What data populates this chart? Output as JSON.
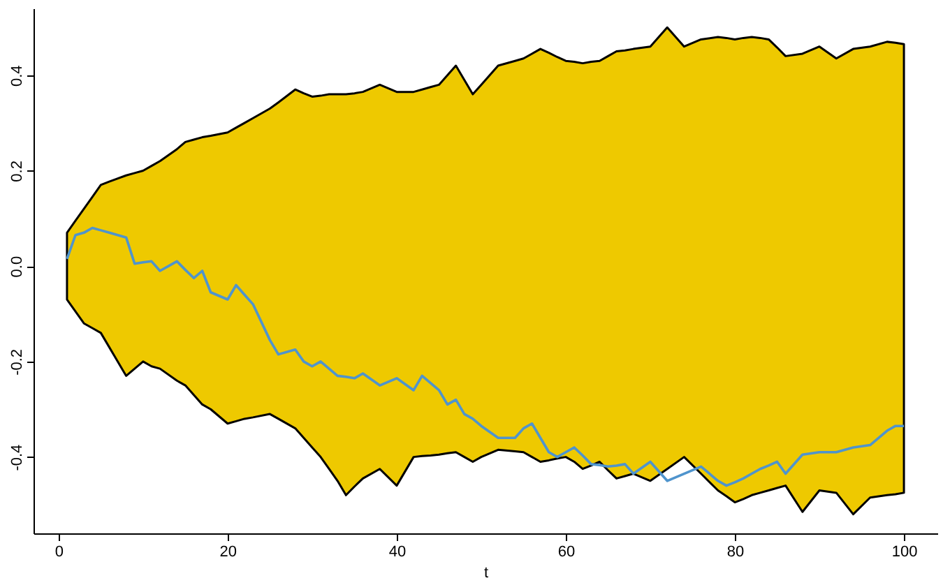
{
  "chart_data": {
    "type": "line",
    "xlabel": "t",
    "xlim": [
      -2.96,
      103.96
    ],
    "ylim": [
      -0.56,
      0.54
    ],
    "xticks": [
      0,
      20,
      40,
      60,
      80,
      100
    ],
    "yticks": [
      {
        "value": -0.4,
        "label": "-0.4"
      },
      {
        "value": -0.2,
        "label": "-0.2"
      },
      {
        "value": 0,
        "label": "0.0"
      },
      {
        "value": 0.2,
        "label": "0.2"
      },
      {
        "value": 0.4,
        "label": "0.4"
      }
    ],
    "grid": false,
    "marker": "none",
    "line_style": "solid",
    "series": [
      {
        "color": "#4f94cd",
        "x": [
          1,
          2,
          3,
          4,
          5,
          6,
          8,
          9,
          10,
          11,
          12,
          14,
          15,
          16,
          17,
          18,
          20,
          21,
          22,
          23,
          25,
          26,
          28,
          29,
          30,
          31,
          32,
          33,
          34,
          35,
          36,
          38,
          40,
          42,
          43,
          44,
          45,
          46,
          47,
          48,
          49,
          50,
          52,
          54,
          55,
          56,
          57,
          58,
          59,
          60,
          61,
          62,
          63,
          64,
          65,
          66,
          67,
          68,
          70,
          72,
          74,
          76,
          78,
          79,
          80,
          81,
          82,
          83,
          84,
          85,
          86,
          88,
          90,
          92,
          94,
          96,
          98,
          99,
          100
        ],
        "values": [
          0.015,
          0.065,
          0.07,
          0.08,
          0.075,
          0.07,
          0.06,
          0.005,
          0.008,
          0.01,
          -0.01,
          0.01,
          -0.008,
          -0.025,
          -0.01,
          -0.055,
          -0.07,
          -0.04,
          -0.06,
          -0.08,
          -0.155,
          -0.185,
          -0.175,
          -0.2,
          -0.21,
          -0.2,
          -0.215,
          -0.23,
          -0.232,
          -0.235,
          -0.225,
          -0.25,
          -0.235,
          -0.26,
          -0.23,
          -0.245,
          -0.26,
          -0.29,
          -0.28,
          -0.31,
          -0.32,
          -0.335,
          -0.36,
          -0.36,
          -0.34,
          -0.33,
          -0.36,
          -0.39,
          -0.4,
          -0.39,
          -0.38,
          -0.397,
          -0.415,
          -0.417,
          -0.42,
          -0.418,
          -0.415,
          -0.435,
          -0.41,
          -0.45,
          -0.435,
          -0.42,
          -0.45,
          -0.46,
          -0.453,
          -0.445,
          -0.435,
          -0.425,
          -0.418,
          -0.41,
          -0.435,
          -0.395,
          -0.39,
          -0.39,
          -0.38,
          -0.375,
          -0.345,
          -0.335,
          -0.335
        ],
        "upper": [
          0.07,
          0.095,
          0.12,
          0.145,
          0.17,
          0.177,
          0.19,
          0.195,
          0.2,
          0.21,
          0.22,
          0.245,
          0.26,
          0.265,
          0.27,
          0.273,
          0.28,
          0.29,
          0.3,
          0.31,
          0.33,
          0.343,
          0.37,
          0.362,
          0.355,
          0.357,
          0.36,
          0.36,
          0.36,
          0.362,
          0.365,
          0.38,
          0.365,
          0.365,
          0.37,
          0.375,
          0.38,
          0.4,
          0.42,
          0.39,
          0.36,
          0.38,
          0.42,
          0.43,
          0.435,
          0.445,
          0.455,
          0.447,
          0.438,
          0.43,
          0.428,
          0.425,
          0.428,
          0.43,
          0.44,
          0.45,
          0.452,
          0.455,
          0.46,
          0.5,
          0.46,
          0.475,
          0.48,
          0.478,
          0.475,
          0.478,
          0.48,
          0.478,
          0.475,
          0.458,
          0.44,
          0.445,
          0.46,
          0.435,
          0.455,
          0.46,
          0.47,
          0.468,
          0.465
        ],
        "lower": [
          -0.07,
          -0.095,
          -0.12,
          -0.13,
          -0.14,
          -0.17,
          -0.23,
          -0.215,
          -0.2,
          -0.21,
          -0.215,
          -0.24,
          -0.25,
          -0.27,
          -0.29,
          -0.3,
          -0.33,
          -0.325,
          -0.32,
          -0.317,
          -0.31,
          -0.32,
          -0.34,
          -0.36,
          -0.38,
          -0.4,
          -0.425,
          -0.45,
          -0.48,
          -0.462,
          -0.445,
          -0.425,
          -0.46,
          -0.4,
          -0.398,
          -0.397,
          -0.395,
          -0.392,
          -0.39,
          -0.4,
          -0.41,
          -0.4,
          -0.385,
          -0.388,
          -0.39,
          -0.4,
          -0.41,
          -0.407,
          -0.403,
          -0.4,
          -0.41,
          -0.425,
          -0.418,
          -0.41,
          -0.428,
          -0.445,
          -0.44,
          -0.435,
          -0.45,
          -0.425,
          -0.4,
          -0.435,
          -0.47,
          -0.482,
          -0.495,
          -0.488,
          -0.48,
          -0.475,
          -0.47,
          -0.465,
          -0.46,
          -0.515,
          -0.47,
          -0.475,
          -0.52,
          -0.485,
          -0.48,
          -0.478,
          -0.475
        ]
      }
    ]
  }
}
